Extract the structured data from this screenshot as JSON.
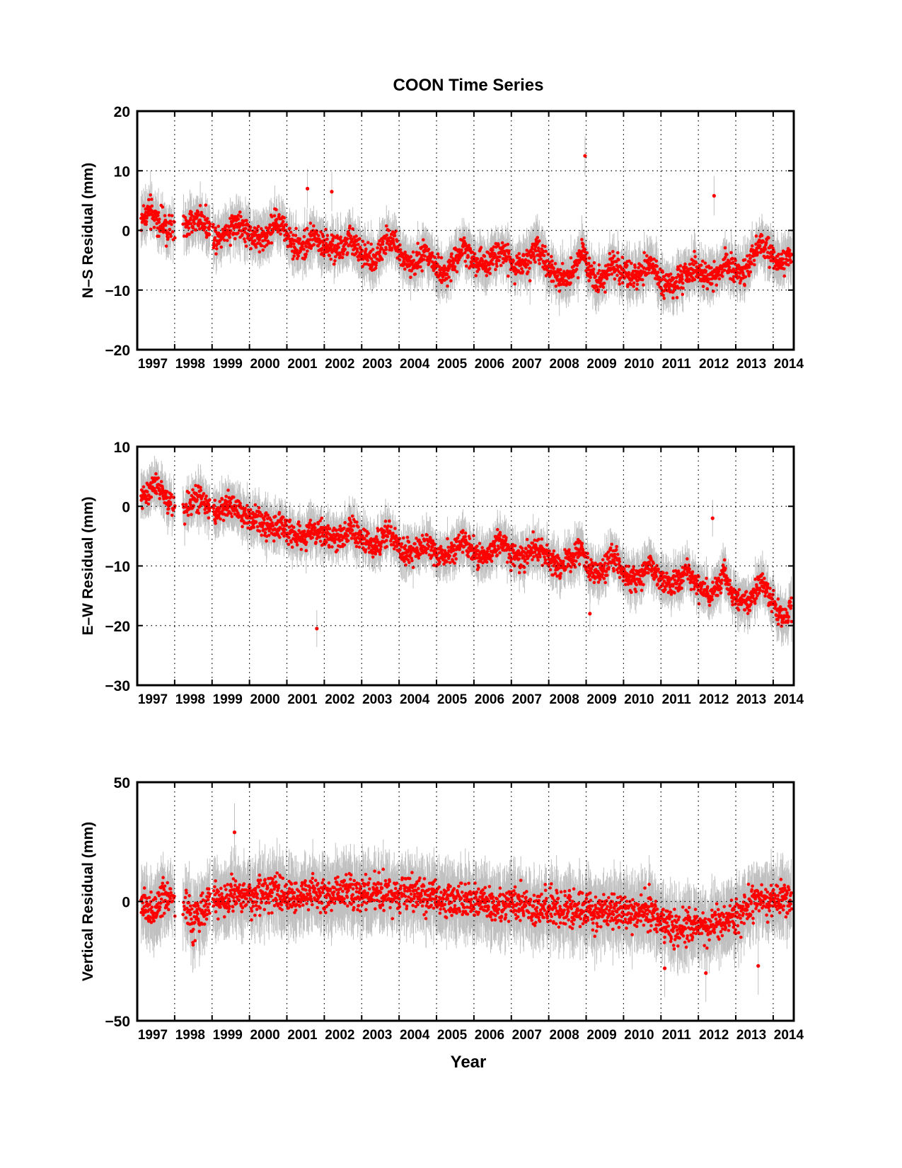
{
  "figure": {
    "title": "COON Time Series",
    "xlabel": "Year",
    "colors": {
      "points": "#ff0000",
      "error_bars": "#c0c0c0",
      "axes": "#000000",
      "grid": "#000000"
    }
  },
  "chart_data": [
    {
      "type": "scatter",
      "title": "COON Time Series",
      "xlabel": "",
      "ylabel": "N–S Residual (mm)",
      "xlim": [
        1997.0,
        2014.55
      ],
      "ylim": [
        -20,
        20
      ],
      "xticks": [
        "1997",
        "1998",
        "1999",
        "2000",
        "2001",
        "2002",
        "2003",
        "2004",
        "2005",
        "2006",
        "2007",
        "2008",
        "2009",
        "2010",
        "2011",
        "2012",
        "2013",
        "2014"
      ],
      "yticks": [
        "−20",
        "−10",
        "0",
        "10",
        "20"
      ],
      "ytick_values": [
        -20,
        -10,
        0,
        10,
        20
      ],
      "grid": true,
      "error_bars": true,
      "x": [
        1997.1,
        1997.3,
        1997.5,
        1997.7,
        1997.9,
        1998.3,
        1998.5,
        1998.7,
        1998.9,
        1999.1,
        1999.3,
        1999.5,
        1999.7,
        1999.9,
        2000.1,
        2000.3,
        2000.5,
        2000.7,
        2000.9,
        2001.1,
        2001.3,
        2001.5,
        2001.7,
        2001.9,
        2002.1,
        2002.3,
        2002.5,
        2002.7,
        2002.9,
        2003.1,
        2003.3,
        2003.5,
        2003.7,
        2003.9,
        2004.1,
        2004.3,
        2004.5,
        2004.7,
        2004.9,
        2005.1,
        2005.3,
        2005.5,
        2005.7,
        2005.9,
        2006.1,
        2006.3,
        2006.5,
        2006.7,
        2006.9,
        2007.1,
        2007.3,
        2007.5,
        2007.7,
        2007.9,
        2008.1,
        2008.3,
        2008.5,
        2008.7,
        2008.9,
        2009.1,
        2009.3,
        2009.5,
        2009.7,
        2009.9,
        2010.1,
        2010.3,
        2010.5,
        2010.7,
        2010.9,
        2011.1,
        2011.3,
        2011.5,
        2011.7,
        2011.9,
        2012.1,
        2012.3,
        2012.5,
        2012.7,
        2012.9,
        2013.1,
        2013.3,
        2013.5,
        2013.7,
        2013.9,
        2014.1,
        2014.3,
        2014.5
      ],
      "y": [
        2.0,
        3.0,
        2.0,
        0.5,
        0.0,
        0.5,
        1.5,
        2.0,
        0.5,
        -1.0,
        -0.5,
        0.5,
        1.0,
        0.0,
        -1.0,
        -1.5,
        -0.5,
        1.5,
        0.5,
        -2.0,
        -2.5,
        -3.0,
        -1.0,
        -1.5,
        -3.0,
        -3.5,
        -3.0,
        -1.5,
        -3.0,
        -4.5,
        -5.0,
        -3.5,
        -1.0,
        -2.0,
        -5.0,
        -6.0,
        -5.5,
        -3.0,
        -5.0,
        -7.0,
        -6.5,
        -5.0,
        -2.5,
        -4.5,
        -6.0,
        -5.5,
        -4.5,
        -3.0,
        -4.5,
        -6.0,
        -5.5,
        -5.0,
        -3.0,
        -5.0,
        -7.0,
        -8.0,
        -7.5,
        -6.0,
        -3.5,
        -7.0,
        -8.5,
        -7.5,
        -5.5,
        -6.5,
        -7.5,
        -8.0,
        -7.0,
        -5.5,
        -7.5,
        -9.0,
        -10.0,
        -8.5,
        -7.0,
        -6.0,
        -7.5,
        -8.0,
        -7.0,
        -5.5,
        -6.5,
        -7.0,
        -6.5,
        -3.5,
        -2.5,
        -4.0,
        -5.5,
        -4.5,
        -4.0
      ],
      "outliers": {
        "x": [
          2008.97,
          2001.55,
          2012.42,
          2002.2
        ],
        "y": [
          12.5,
          7.0,
          5.8,
          6.5
        ]
      }
    },
    {
      "type": "scatter",
      "title": "",
      "xlabel": "",
      "ylabel": "E–W Residual (mm)",
      "xlim": [
        1997.0,
        2014.55
      ],
      "ylim": [
        -30,
        10
      ],
      "xticks": [
        "1997",
        "1998",
        "1999",
        "2000",
        "2001",
        "2002",
        "2003",
        "2004",
        "2005",
        "2006",
        "2007",
        "2008",
        "2009",
        "2010",
        "2011",
        "2012",
        "2013",
        "2014"
      ],
      "yticks": [
        "−30",
        "−20",
        "−10",
        "0",
        "10"
      ],
      "ytick_values": [
        -30,
        -20,
        -10,
        0,
        10
      ],
      "grid": true,
      "error_bars": true,
      "x": [
        1997.1,
        1997.3,
        1997.5,
        1997.7,
        1997.9,
        1998.3,
        1998.5,
        1998.7,
        1998.9,
        1999.1,
        1999.3,
        1999.5,
        1999.7,
        1999.9,
        2000.1,
        2000.3,
        2000.5,
        2000.7,
        2000.9,
        2001.1,
        2001.3,
        2001.5,
        2001.7,
        2001.9,
        2002.1,
        2002.3,
        2002.5,
        2002.7,
        2002.9,
        2003.1,
        2003.3,
        2003.5,
        2003.7,
        2003.9,
        2004.1,
        2004.3,
        2004.5,
        2004.7,
        2004.9,
        2005.1,
        2005.3,
        2005.5,
        2005.7,
        2005.9,
        2006.1,
        2006.3,
        2006.5,
        2006.7,
        2006.9,
        2007.1,
        2007.3,
        2007.5,
        2007.7,
        2007.9,
        2008.1,
        2008.3,
        2008.5,
        2008.7,
        2008.9,
        2009.1,
        2009.3,
        2009.5,
        2009.7,
        2009.9,
        2010.1,
        2010.3,
        2010.5,
        2010.7,
        2010.9,
        2011.1,
        2011.3,
        2011.5,
        2011.7,
        2011.9,
        2012.1,
        2012.3,
        2012.5,
        2012.7,
        2012.9,
        2013.1,
        2013.3,
        2013.5,
        2013.7,
        2013.9,
        2014.1,
        2014.3,
        2014.5
      ],
      "y": [
        1.5,
        2.5,
        3.5,
        2.0,
        0.0,
        -0.5,
        1.0,
        1.5,
        0.0,
        -1.0,
        -0.5,
        0.5,
        -1.0,
        -1.5,
        -2.0,
        -2.5,
        -3.5,
        -3.5,
        -3.0,
        -4.5,
        -5.0,
        -5.0,
        -4.0,
        -4.0,
        -5.0,
        -5.5,
        -5.0,
        -3.5,
        -5.0,
        -6.0,
        -6.5,
        -6.0,
        -4.5,
        -6.0,
        -7.5,
        -8.0,
        -7.5,
        -6.0,
        -7.0,
        -8.5,
        -8.0,
        -7.5,
        -5.5,
        -7.0,
        -8.5,
        -8.0,
        -7.5,
        -5.5,
        -7.0,
        -8.5,
        -8.5,
        -7.5,
        -6.5,
        -8.0,
        -9.5,
        -10.0,
        -9.0,
        -8.0,
        -7.5,
        -10.5,
        -11.5,
        -10.5,
        -8.5,
        -10.5,
        -12.0,
        -12.5,
        -11.0,
        -9.5,
        -11.5,
        -13.0,
        -13.5,
        -12.5,
        -10.5,
        -12.5,
        -14.0,
        -15.0,
        -13.5,
        -11.0,
        -14.5,
        -16.0,
        -16.5,
        -15.0,
        -12.5,
        -15.0,
        -17.5,
        -18.5,
        -17.0
      ],
      "outliers": {
        "x": [
          2001.8,
          2009.1,
          2012.38
        ],
        "y": [
          -20.5,
          -18.0,
          -2.0
        ]
      }
    },
    {
      "type": "scatter",
      "title": "",
      "xlabel": "Year",
      "ylabel": "Vertical Residual (mm)",
      "xlim": [
        1997.0,
        2014.55
      ],
      "ylim": [
        -50,
        50
      ],
      "xticks": [
        "1997",
        "1998",
        "1999",
        "2000",
        "2001",
        "2002",
        "2003",
        "2004",
        "2005",
        "2006",
        "2007",
        "2008",
        "2009",
        "2010",
        "2011",
        "2012",
        "2013",
        "2014"
      ],
      "yticks": [
        "−50",
        "0",
        "50"
      ],
      "ytick_values": [
        -50,
        0,
        50
      ],
      "grid": true,
      "error_bars": true,
      "x": [
        1997.1,
        1997.3,
        1997.5,
        1997.7,
        1997.9,
        1998.3,
        1998.5,
        1998.7,
        1998.9,
        1999.1,
        1999.3,
        1999.5,
        1999.7,
        1999.9,
        2000.1,
        2000.3,
        2000.5,
        2000.7,
        2000.9,
        2001.1,
        2001.3,
        2001.5,
        2001.7,
        2001.9,
        2002.1,
        2002.3,
        2002.5,
        2002.7,
        2002.9,
        2003.1,
        2003.3,
        2003.5,
        2003.7,
        2003.9,
        2004.1,
        2004.3,
        2004.5,
        2004.7,
        2004.9,
        2005.1,
        2005.3,
        2005.5,
        2005.7,
        2005.9,
        2006.1,
        2006.3,
        2006.5,
        2006.7,
        2006.9,
        2007.1,
        2007.3,
        2007.5,
        2007.7,
        2007.9,
        2008.1,
        2008.3,
        2008.5,
        2008.7,
        2008.9,
        2009.1,
        2009.3,
        2009.5,
        2009.7,
        2009.9,
        2010.1,
        2010.3,
        2010.5,
        2010.7,
        2010.9,
        2011.1,
        2011.3,
        2011.5,
        2011.7,
        2011.9,
        2012.1,
        2012.3,
        2012.5,
        2012.7,
        2012.9,
        2013.1,
        2013.3,
        2013.5,
        2013.7,
        2013.9,
        2014.1,
        2014.3,
        2014.5
      ],
      "y": [
        -1.0,
        -3.0,
        -4.0,
        0.0,
        2.0,
        -3.0,
        -8.0,
        -5.0,
        0.0,
        1.0,
        0.0,
        3.0,
        4.0,
        3.0,
        2.0,
        4.0,
        3.0,
        4.0,
        2.0,
        3.0,
        2.0,
        3.0,
        4.0,
        3.0,
        2.0,
        4.0,
        3.0,
        4.0,
        2.0,
        3.0,
        4.0,
        3.0,
        4.0,
        2.0,
        3.0,
        4.0,
        2.0,
        3.0,
        1.0,
        0.0,
        1.0,
        0.0,
        1.0,
        0.0,
        -1.0,
        0.0,
        -1.0,
        -2.0,
        -1.0,
        -2.0,
        -1.0,
        -2.0,
        -3.0,
        -2.0,
        -3.0,
        -4.0,
        -3.0,
        -4.0,
        -3.0,
        -4.0,
        -5.0,
        -4.0,
        -3.0,
        -4.0,
        -5.0,
        -4.0,
        -3.0,
        -4.0,
        -6.0,
        -9.0,
        -11.0,
        -12.0,
        -11.0,
        -10.0,
        -11.0,
        -10.0,
        -9.0,
        -8.0,
        -7.0,
        -6.0,
        -3.0,
        0.0,
        1.0,
        0.0,
        1.0,
        2.0,
        0.0
      ],
      "outliers": {
        "x": [
          1999.6,
          2011.1,
          2012.2,
          2013.6
        ],
        "y": [
          29.0,
          -28.0,
          -30.0,
          -27.0
        ]
      }
    }
  ]
}
